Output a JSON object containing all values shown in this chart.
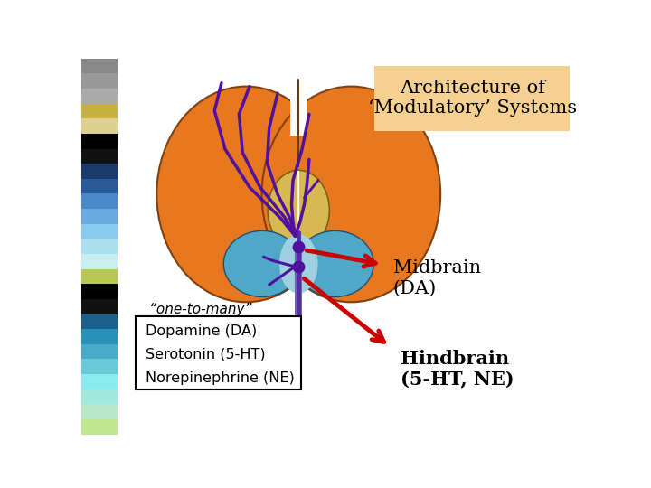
{
  "title": "Architecture of\n‘Modulatory’ Systems",
  "title_bg": "#f5d090",
  "title_fontsize": 15,
  "bg_color": "#ffffff",
  "orange": "#e87820",
  "teal": "#50a8c8",
  "teal_light": "#a0d0e0",
  "yellow_orange": "#d8b850",
  "yellow_light": "#e8d890",
  "purple": "#5010a0",
  "red_arrow": "#cc0000",
  "dot_color": "#5010a0",
  "spine_purple": "#7060b0",
  "spine_yellow": "#d8c860",
  "spine_gray": "#b0b8d0",
  "label_midbrain": "Midbrain\n(DA)",
  "label_hindbrain": "Hindbrain\n(5-HT, NE)",
  "label_one_to_many": "“one-to-many”",
  "box_lines": [
    "Dopamine (DA)",
    "Serotonin (5-HT)",
    "Norepinephrine (NE)"
  ],
  "sidebar_colors": [
    "#888888",
    "#999999",
    "#aaaaaa",
    "#c8b040",
    "#ddd090",
    "#000000",
    "#111111",
    "#1a3a6a",
    "#2a5a9a",
    "#4a8aca",
    "#6aaae0",
    "#8acaee",
    "#aae0f0",
    "#c8eeee",
    "#b8c850",
    "#000000",
    "#111111",
    "#1a608a",
    "#2a90ba",
    "#4aaaca",
    "#6acada",
    "#8aeaf0",
    "#a0e8e0",
    "#b8e8c8",
    "#c0e890"
  ]
}
